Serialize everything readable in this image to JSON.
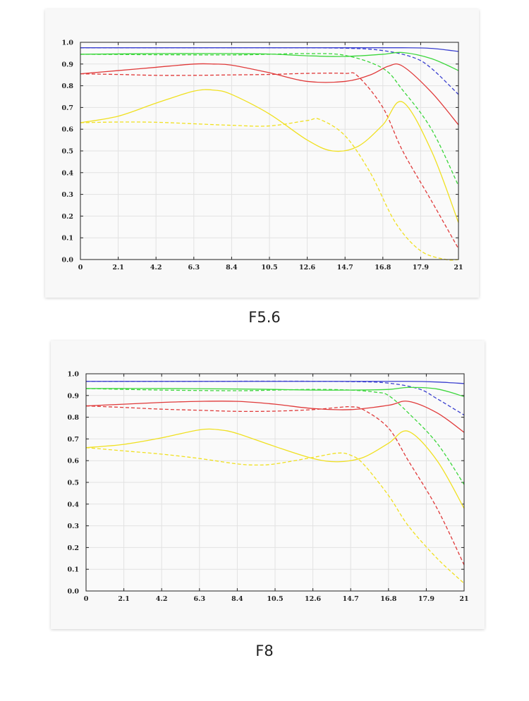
{
  "charts": [
    {
      "caption": "F5.6"
    },
    {
      "caption": "F8"
    }
  ],
  "chart_data": [
    {
      "type": "line",
      "title": "F5.6",
      "xlabel": "",
      "ylabel": "",
      "xlim": [
        0,
        21
      ],
      "ylim": [
        0,
        1.0
      ],
      "x_ticks": [
        "0",
        "2.1",
        "4.2",
        "6.3",
        "8.4",
        "10.5",
        "12.6",
        "14.7",
        "16.8",
        "17.9",
        "21"
      ],
      "y_ticks": [
        "0.0",
        "0.1",
        "0.2",
        "0.3",
        "0.4",
        "0.5",
        "0.6",
        "0.7",
        "0.8",
        "0.9",
        "1.0"
      ],
      "grid": true,
      "series": [
        {
          "color": "#3a3fcf",
          "style": "solid",
          "points": [
            [
              0,
              0.975
            ],
            [
              6.3,
              0.975
            ],
            [
              10.5,
              0.975
            ],
            [
              14.7,
              0.975
            ],
            [
              17.9,
              0.975
            ],
            [
              19.5,
              0.972
            ],
            [
              21,
              0.958
            ]
          ]
        },
        {
          "color": "#3a3fcf",
          "style": "dashed",
          "points": [
            [
              0,
              0.975
            ],
            [
              6.3,
              0.975
            ],
            [
              10.5,
              0.975
            ],
            [
              14.7,
              0.973
            ],
            [
              16.8,
              0.962
            ],
            [
              18.5,
              0.93
            ],
            [
              19.5,
              0.88
            ],
            [
              21,
              0.76
            ]
          ]
        },
        {
          "color": "#3cd63c",
          "style": "solid",
          "points": [
            [
              0,
              0.945
            ],
            [
              4.2,
              0.948
            ],
            [
              8.4,
              0.948
            ],
            [
              10.5,
              0.946
            ],
            [
              12.6,
              0.938
            ],
            [
              14.7,
              0.935
            ],
            [
              16.8,
              0.945
            ],
            [
              17.9,
              0.953
            ],
            [
              19.5,
              0.925
            ],
            [
              21,
              0.87
            ]
          ]
        },
        {
          "color": "#3cd63c",
          "style": "dashed",
          "points": [
            [
              0,
              0.945
            ],
            [
              4.2,
              0.943
            ],
            [
              8.4,
              0.942
            ],
            [
              10.5,
              0.945
            ],
            [
              12.6,
              0.948
            ],
            [
              14.7,
              0.94
            ],
            [
              16.8,
              0.88
            ],
            [
              17.9,
              0.78
            ],
            [
              19.5,
              0.6
            ],
            [
              21,
              0.34
            ]
          ]
        },
        {
          "color": "#e03a3a",
          "style": "solid",
          "points": [
            [
              0,
              0.855
            ],
            [
              2.1,
              0.87
            ],
            [
              4.2,
              0.885
            ],
            [
              6.3,
              0.9
            ],
            [
              7.4,
              0.9
            ],
            [
              8.4,
              0.895
            ],
            [
              10.5,
              0.86
            ],
            [
              12.6,
              0.82
            ],
            [
              14.7,
              0.82
            ],
            [
              16.1,
              0.85
            ],
            [
              17.1,
              0.89
            ],
            [
              17.9,
              0.89
            ],
            [
              19.5,
              0.77
            ],
            [
              21,
              0.62
            ]
          ]
        },
        {
          "color": "#e03a3a",
          "style": "dashed",
          "points": [
            [
              0,
              0.855
            ],
            [
              2.1,
              0.852
            ],
            [
              4.2,
              0.848
            ],
            [
              6.3,
              0.848
            ],
            [
              8.4,
              0.85
            ],
            [
              10.5,
              0.852
            ],
            [
              12.6,
              0.857
            ],
            [
              14.7,
              0.857
            ],
            [
              15.4,
              0.845
            ],
            [
              16.8,
              0.7
            ],
            [
              17.9,
              0.5
            ],
            [
              19.5,
              0.27
            ],
            [
              21,
              0.05
            ]
          ]
        },
        {
          "color": "#f0e020",
          "style": "solid",
          "points": [
            [
              0,
              0.63
            ],
            [
              2.1,
              0.66
            ],
            [
              4.2,
              0.72
            ],
            [
              6.3,
              0.775
            ],
            [
              7.4,
              0.78
            ],
            [
              8.4,
              0.76
            ],
            [
              10.5,
              0.67
            ],
            [
              12.6,
              0.55
            ],
            [
              14.0,
              0.5
            ],
            [
              15.4,
              0.52
            ],
            [
              16.8,
              0.62
            ],
            [
              17.9,
              0.725
            ],
            [
              19.5,
              0.5
            ],
            [
              21,
              0.17
            ]
          ]
        },
        {
          "color": "#f0e020",
          "style": "dashed",
          "points": [
            [
              0,
              0.63
            ],
            [
              2.1,
              0.633
            ],
            [
              4.2,
              0.632
            ],
            [
              6.3,
              0.625
            ],
            [
              8.4,
              0.618
            ],
            [
              10.5,
              0.615
            ],
            [
              12.6,
              0.64
            ],
            [
              13.3,
              0.645
            ],
            [
              14.7,
              0.57
            ],
            [
              16.1,
              0.4
            ],
            [
              17.5,
              0.17
            ],
            [
              18.9,
              0.04
            ],
            [
              20.3,
              0.0
            ],
            [
              21,
              0.0
            ]
          ]
        }
      ]
    },
    {
      "type": "line",
      "title": "F8",
      "xlabel": "",
      "ylabel": "",
      "xlim": [
        0,
        21
      ],
      "ylim": [
        0,
        1.0
      ],
      "x_ticks": [
        "0",
        "2.1",
        "4.2",
        "6.3",
        "8.4",
        "10.5",
        "12.6",
        "14.7",
        "16.8",
        "17.9",
        "21"
      ],
      "y_ticks": [
        "0.0",
        "0.1",
        "0.2",
        "0.3",
        "0.4",
        "0.5",
        "0.6",
        "0.7",
        "0.8",
        "0.9",
        "1.0"
      ],
      "grid": true,
      "series": [
        {
          "color": "#3a3fcf",
          "style": "solid",
          "points": [
            [
              0,
              0.965
            ],
            [
              6.3,
              0.965
            ],
            [
              10.5,
              0.965
            ],
            [
              14.7,
              0.965
            ],
            [
              17.9,
              0.965
            ],
            [
              19.5,
              0.962
            ],
            [
              21,
              0.955
            ]
          ]
        },
        {
          "color": "#3a3fcf",
          "style": "dashed",
          "points": [
            [
              0,
              0.965
            ],
            [
              6.3,
              0.965
            ],
            [
              10.5,
              0.966
            ],
            [
              14.7,
              0.964
            ],
            [
              16.8,
              0.957
            ],
            [
              18.5,
              0.93
            ],
            [
              19.5,
              0.885
            ],
            [
              21,
              0.81
            ]
          ]
        },
        {
          "color": "#3cd63c",
          "style": "solid",
          "points": [
            [
              0,
              0.932
            ],
            [
              4.2,
              0.932
            ],
            [
              8.4,
              0.93
            ],
            [
              10.5,
              0.928
            ],
            [
              12.6,
              0.925
            ],
            [
              14.7,
              0.925
            ],
            [
              16.8,
              0.928
            ],
            [
              17.9,
              0.937
            ],
            [
              19.5,
              0.93
            ],
            [
              21,
              0.895
            ]
          ]
        },
        {
          "color": "#3cd63c",
          "style": "dashed",
          "points": [
            [
              0,
              0.932
            ],
            [
              4.2,
              0.925
            ],
            [
              8.4,
              0.922
            ],
            [
              10.5,
              0.925
            ],
            [
              12.6,
              0.928
            ],
            [
              14.7,
              0.925
            ],
            [
              16.1,
              0.915
            ],
            [
              16.8,
              0.9
            ],
            [
              17.9,
              0.82
            ],
            [
              19.5,
              0.68
            ],
            [
              21,
              0.49
            ]
          ]
        },
        {
          "color": "#e03a3a",
          "style": "solid",
          "points": [
            [
              0,
              0.852
            ],
            [
              2.1,
              0.86
            ],
            [
              4.2,
              0.868
            ],
            [
              6.3,
              0.873
            ],
            [
              8.4,
              0.873
            ],
            [
              10.5,
              0.86
            ],
            [
              12.6,
              0.84
            ],
            [
              14.7,
              0.835
            ],
            [
              16.8,
              0.855
            ],
            [
              17.9,
              0.873
            ],
            [
              19.5,
              0.82
            ],
            [
              21,
              0.73
            ]
          ]
        },
        {
          "color": "#e03a3a",
          "style": "dashed",
          "points": [
            [
              0,
              0.852
            ],
            [
              2.1,
              0.845
            ],
            [
              4.2,
              0.837
            ],
            [
              6.3,
              0.832
            ],
            [
              8.4,
              0.827
            ],
            [
              10.5,
              0.828
            ],
            [
              12.6,
              0.835
            ],
            [
              14.0,
              0.845
            ],
            [
              14.7,
              0.848
            ],
            [
              15.4,
              0.835
            ],
            [
              16.8,
              0.75
            ],
            [
              17.9,
              0.6
            ],
            [
              19.5,
              0.38
            ],
            [
              21,
              0.12
            ]
          ]
        },
        {
          "color": "#f0e020",
          "style": "solid",
          "points": [
            [
              0,
              0.66
            ],
            [
              2.1,
              0.675
            ],
            [
              4.2,
              0.705
            ],
            [
              6.3,
              0.742
            ],
            [
              7.4,
              0.742
            ],
            [
              8.4,
              0.725
            ],
            [
              10.5,
              0.665
            ],
            [
              12.6,
              0.61
            ],
            [
              14.0,
              0.595
            ],
            [
              15.4,
              0.615
            ],
            [
              16.8,
              0.68
            ],
            [
              17.9,
              0.735
            ],
            [
              19.5,
              0.6
            ],
            [
              21,
              0.38
            ]
          ]
        },
        {
          "color": "#f0e020",
          "style": "dashed",
          "points": [
            [
              0,
              0.66
            ],
            [
              2.1,
              0.645
            ],
            [
              4.2,
              0.63
            ],
            [
              6.3,
              0.61
            ],
            [
              8.4,
              0.585
            ],
            [
              9.5,
              0.58
            ],
            [
              10.5,
              0.585
            ],
            [
              12.6,
              0.615
            ],
            [
              14.0,
              0.635
            ],
            [
              14.7,
              0.625
            ],
            [
              15.4,
              0.585
            ],
            [
              16.8,
              0.44
            ],
            [
              17.9,
              0.3
            ],
            [
              19.5,
              0.15
            ],
            [
              21,
              0.035
            ]
          ]
        }
      ]
    }
  ]
}
